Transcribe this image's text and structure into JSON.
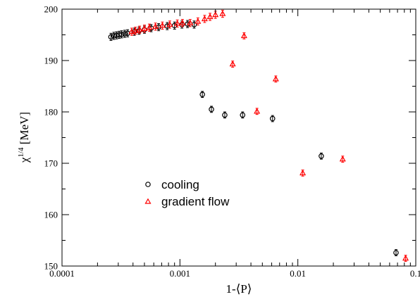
{
  "chart_data": {
    "type": "scatter",
    "xscale": "log",
    "xlim": [
      0.0001,
      0.1
    ],
    "ylim": [
      150,
      200
    ],
    "xlabel": "1-⟨P⟩",
    "ylabel": "χ",
    "ylabel_sup": "1/4",
    "ylabel_unit": " [MeV]",
    "xticks": [
      {
        "value": 0.0001,
        "label": "0.0001"
      },
      {
        "value": 0.001,
        "label": "0.001"
      },
      {
        "value": 0.01,
        "label": "0.01"
      },
      {
        "value": 0.1,
        "label": "0.1"
      }
    ],
    "yticks": [
      {
        "value": 150,
        "label": "150"
      },
      {
        "value": 160,
        "label": "160"
      },
      {
        "value": 170,
        "label": "170"
      },
      {
        "value": 180,
        "label": "180"
      },
      {
        "value": 190,
        "label": "190"
      },
      {
        "value": 200,
        "label": "200"
      }
    ],
    "grid": false,
    "legend_position": "lower-left",
    "series": [
      {
        "name": "cooling",
        "marker": "circle",
        "color": "#000000",
        "points": [
          [
            0.00026,
            194.6,
            0.7
          ],
          [
            0.000275,
            194.8,
            0.7
          ],
          [
            0.00029,
            194.9,
            0.7
          ],
          [
            0.000305,
            195.0,
            0.7
          ],
          [
            0.00032,
            195.1,
            0.7
          ],
          [
            0.00034,
            195.2,
            0.7
          ],
          [
            0.00036,
            195.3,
            0.7
          ],
          [
            0.00041,
            195.6,
            0.7
          ],
          [
            0.00045,
            195.8,
            0.7
          ],
          [
            0.0005,
            196.0,
            0.7
          ],
          [
            0.00057,
            196.3,
            0.7
          ],
          [
            0.00066,
            196.5,
            0.7
          ],
          [
            0.00078,
            196.7,
            0.7
          ],
          [
            0.0009,
            196.8,
            0.7
          ],
          [
            0.00104,
            197.0,
            0.7
          ],
          [
            0.00116,
            197.1,
            0.7
          ],
          [
            0.00132,
            197.0,
            0.7
          ],
          [
            0.00155,
            183.4,
            0.6
          ],
          [
            0.00185,
            180.5,
            0.6
          ],
          [
            0.0024,
            179.4,
            0.6
          ],
          [
            0.0034,
            179.4,
            0.6
          ],
          [
            0.0061,
            178.7,
            0.6
          ],
          [
            0.0158,
            171.4,
            0.6
          ],
          [
            0.068,
            152.6,
            0.6
          ]
        ]
      },
      {
        "name": "gradient flow",
        "marker": "triangle",
        "color": "#ff0000",
        "points": [
          [
            0.00039,
            195.6,
            0.7
          ],
          [
            0.00042,
            195.8,
            0.7
          ],
          [
            0.000455,
            196.0,
            0.7
          ],
          [
            0.0005,
            196.2,
            0.7
          ],
          [
            0.00055,
            196.4,
            0.7
          ],
          [
            0.00062,
            196.6,
            0.7
          ],
          [
            0.00071,
            196.8,
            0.7
          ],
          [
            0.00082,
            197.0,
            0.7
          ],
          [
            0.00095,
            197.2,
            0.7
          ],
          [
            0.00105,
            197.3,
            0.7
          ],
          [
            0.00122,
            197.3,
            0.7
          ],
          [
            0.00142,
            197.6,
            0.7
          ],
          [
            0.00162,
            198.1,
            0.7
          ],
          [
            0.0018,
            198.5,
            0.7
          ],
          [
            0.002,
            198.9,
            0.7
          ],
          [
            0.0023,
            199.1,
            0.7
          ],
          [
            0.0028,
            189.3,
            0.6
          ],
          [
            0.0035,
            194.8,
            0.6
          ],
          [
            0.0045,
            180.1,
            0.6
          ],
          [
            0.0065,
            186.4,
            0.6
          ],
          [
            0.011,
            168.1,
            0.6
          ],
          [
            0.024,
            170.8,
            0.6
          ],
          [
            0.082,
            151.5,
            0.6
          ]
        ]
      }
    ]
  }
}
